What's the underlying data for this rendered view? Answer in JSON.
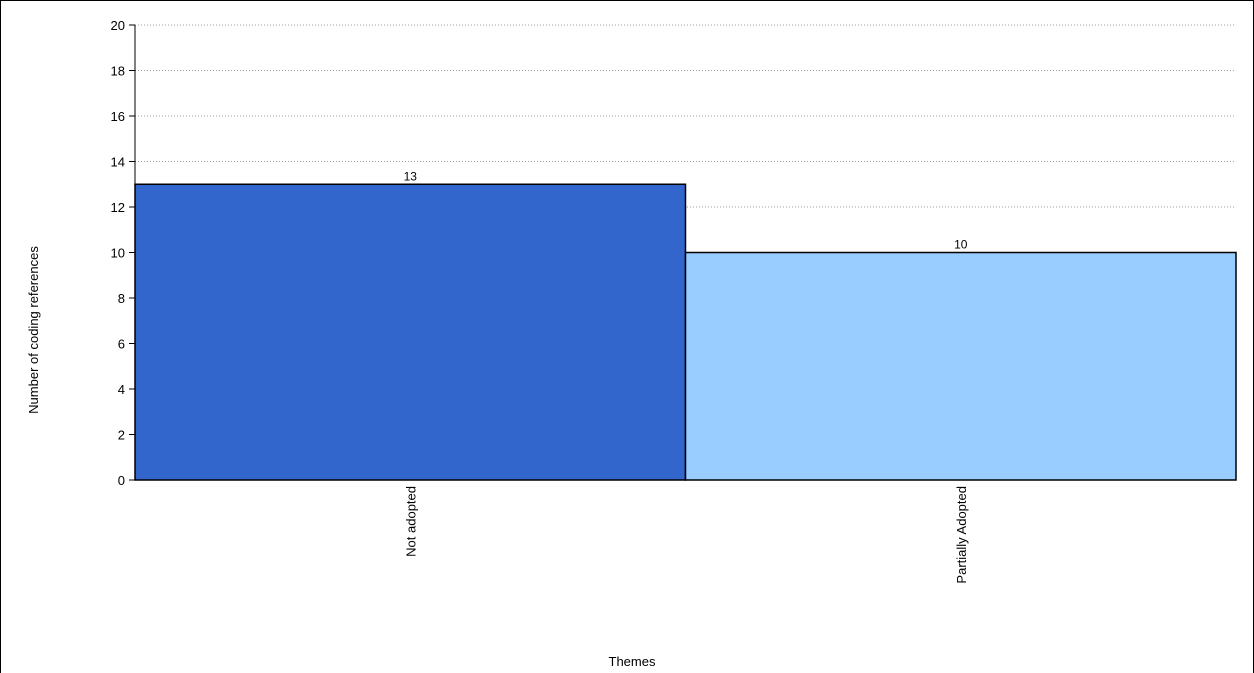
{
  "chart_data": {
    "type": "bar",
    "categories": [
      "Not adopted",
      "Partially Adopted"
    ],
    "values": [
      13,
      10
    ],
    "colors": [
      "#3366cc",
      "#99ccff"
    ],
    "xlabel": "Themes",
    "ylabel": "Number of coding references",
    "ylim": [
      0,
      20
    ],
    "yticks": [
      0,
      2,
      4,
      6,
      8,
      10,
      12,
      14,
      16,
      18,
      20
    ],
    "grid": true,
    "legend": "none"
  }
}
